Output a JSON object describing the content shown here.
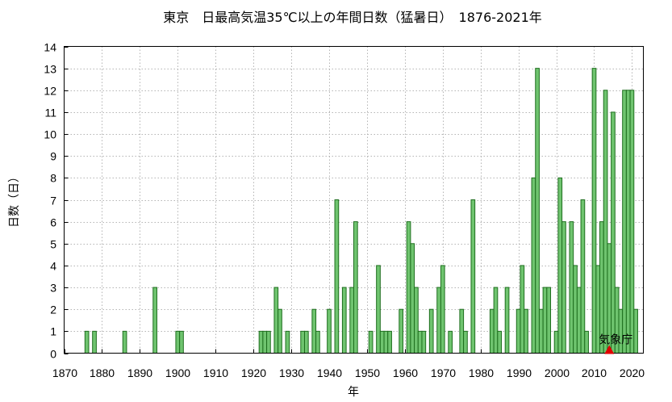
{
  "chart_data": {
    "type": "bar",
    "title": "東京　日最高気温35℃以上の年間日数（猛暑日）　1876-2021年",
    "xlabel": "年",
    "ylabel": "日数（日）",
    "xlim": [
      1870,
      2023
    ],
    "ylim": [
      0,
      14
    ],
    "xticks": [
      1870,
      1880,
      1890,
      1900,
      1910,
      1920,
      1930,
      1940,
      1950,
      1960,
      1970,
      1980,
      1990,
      2000,
      2010,
      2020
    ],
    "yticks": [
      0,
      1,
      2,
      3,
      4,
      5,
      6,
      7,
      8,
      9,
      10,
      11,
      12,
      13,
      14
    ],
    "grid": true,
    "bar_color": "#6fc46f",
    "bar_edge_color": "#1e6e1e",
    "marker_color": "#e00000",
    "annotation": {
      "label": "気象庁",
      "x": 2014
    },
    "x": [
      1876,
      1878,
      1886,
      1894,
      1900,
      1901,
      1922,
      1923,
      1924,
      1926,
      1927,
      1929,
      1933,
      1934,
      1936,
      1937,
      1940,
      1942,
      1944,
      1946,
      1947,
      1951,
      1953,
      1954,
      1955,
      1956,
      1959,
      1961,
      1962,
      1963,
      1964,
      1965,
      1967,
      1969,
      1970,
      1972,
      1975,
      1976,
      1978,
      1983,
      1984,
      1985,
      1987,
      1990,
      1991,
      1992,
      1994,
      1995,
      1996,
      1997,
      1998,
      2000,
      2001,
      2002,
      2004,
      2005,
      2006,
      2007,
      2008,
      2010,
      2011,
      2012,
      2013,
      2014,
      2015,
      2016,
      2017,
      2018,
      2019,
      2020,
      2021
    ],
    "values": [
      1,
      1,
      1,
      3,
      1,
      1,
      1,
      1,
      1,
      3,
      2,
      1,
      1,
      1,
      2,
      1,
      2,
      7,
      3,
      3,
      6,
      1,
      4,
      1,
      1,
      1,
      2,
      6,
      5,
      3,
      1,
      1,
      2,
      3,
      4,
      1,
      2,
      1,
      7,
      2,
      3,
      1,
      3,
      2,
      4,
      2,
      8,
      13,
      2,
      3,
      3,
      1,
      8,
      6,
      6,
      4,
      3,
      7,
      1,
      13,
      4,
      6,
      12,
      5,
      11,
      3,
      2,
      12,
      12,
      12,
      2
    ]
  }
}
